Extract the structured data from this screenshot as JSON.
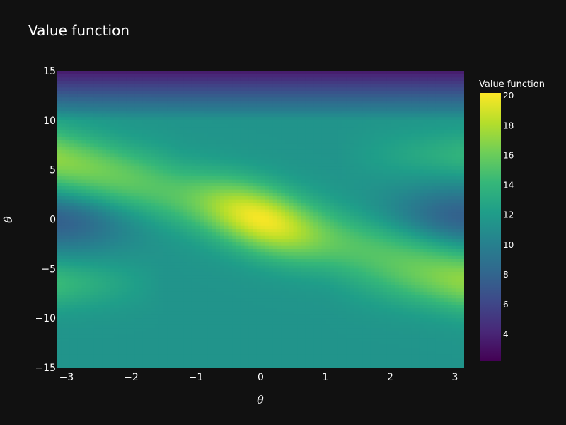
{
  "chart_data": {
    "type": "heatmap",
    "title": "Value function",
    "xlabel": "θ",
    "ylabel": "θ̇",
    "xlim": [
      -3.1416,
      3.1416
    ],
    "ylim": [
      -15,
      15
    ],
    "x_ticks": [
      -3,
      -2,
      -1,
      0,
      1,
      2,
      3
    ],
    "x_tick_labels": [
      "−3",
      "−2",
      "−1",
      "0",
      "1",
      "2",
      "3"
    ],
    "y_ticks": [
      15,
      10,
      5,
      0,
      -5,
      -10,
      -15
    ],
    "y_tick_labels": [
      "15",
      "10",
      "5",
      "0",
      "−5",
      "−10",
      "−15"
    ],
    "grid": false,
    "colorscale": "Viridis",
    "colorbar": {
      "title": "Value function",
      "range": [
        2.2,
        20.2
      ],
      "ticks": [
        20,
        18,
        16,
        14,
        12,
        10,
        8,
        6,
        4
      ],
      "tick_labels": [
        "20",
        "18",
        "16",
        "14",
        "12",
        "10",
        "8",
        "6",
        "4"
      ]
    },
    "z_summary": {
      "min": 2.2,
      "max": 20.2,
      "peak_at": [
        0,
        0
      ],
      "background": 11.5,
      "description_values": {
        "main_ridge_center": 20,
        "main_ridge_edges": 15,
        "upper_left_band": 15,
        "lower_right_band": 15,
        "top_edge": 2.5,
        "left_middle": 7.5,
        "right_middle": 7.5,
        "bottom_region": 11.5
      }
    }
  },
  "colors": {
    "background": "#111111",
    "text": "#ffffff"
  }
}
